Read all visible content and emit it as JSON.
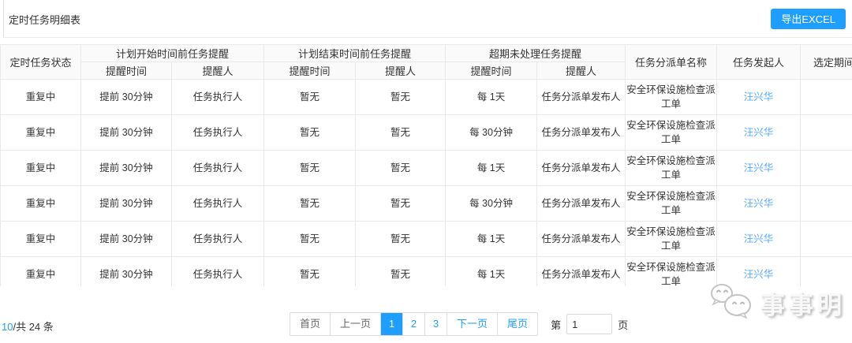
{
  "page": {
    "title": "定时任务明细表",
    "export_button": "导出EXCEL"
  },
  "table": {
    "header_groups": {
      "status": "定时任务状态",
      "before_start": "计划开始时间前任务提醒",
      "before_end": "计划结束时间前任务提醒",
      "overdue": "超期未处理任务提醒",
      "dispatch_name": "任务分派单名称",
      "initiator": "任务发起人",
      "period": "选定期间内"
    },
    "sub_headers": {
      "remind_time": "提醒时间",
      "remind_person": "提醒人"
    },
    "rows": [
      [
        "重复中",
        "提前 30分钟",
        "任务执行人",
        "暂无",
        "暂无",
        "每 1天",
        "任务分派单发布人",
        "安全环保设施检查派工单",
        "汪兴华",
        ""
      ],
      [
        "重复中",
        "提前 30分钟",
        "任务执行人",
        "暂无",
        "暂无",
        "每 30分钟",
        "任务分派单发布人",
        "安全环保设施检查派工单",
        "汪兴华",
        ""
      ],
      [
        "重复中",
        "提前 30分钟",
        "任务执行人",
        "暂无",
        "暂无",
        "每 1天",
        "任务分派单发布人",
        "安全环保设施检查派工单",
        "汪兴华",
        ""
      ],
      [
        "重复中",
        "提前 30分钟",
        "任务执行人",
        "暂无",
        "暂无",
        "每 30分钟",
        "任务分派单发布人",
        "安全环保设施检查派工单",
        "汪兴华",
        ""
      ],
      [
        "重复中",
        "提前 30分钟",
        "任务执行人",
        "暂无",
        "暂无",
        "每 1天",
        "任务分派单发布人",
        "安全环保设施检查派工单",
        "汪兴华",
        ""
      ],
      [
        "重复中",
        "提前 30分钟",
        "任务执行人",
        "暂无",
        "暂无",
        "每 1天",
        "任务分派单发布人",
        "安全环保设施检查派工单",
        "汪兴华",
        ""
      ]
    ]
  },
  "footer": {
    "page_size": "10",
    "total_text": "/共 24 条",
    "pagination": {
      "first": "首页",
      "prev": "上一页",
      "pages": [
        "1",
        "2",
        "3"
      ],
      "active_page": "1",
      "next": "下一页",
      "last": "尾页",
      "goto_prefix": "第",
      "goto_value": "1",
      "goto_suffix": "页"
    }
  },
  "watermark": {
    "logo_icon": "chat-bubbles-logo-icon",
    "text": "事事明"
  },
  "colors": {
    "accent": "#1e9fff",
    "link": "#54aaf8",
    "header_bg": "#fafafa",
    "border": "#e9e9e9"
  }
}
